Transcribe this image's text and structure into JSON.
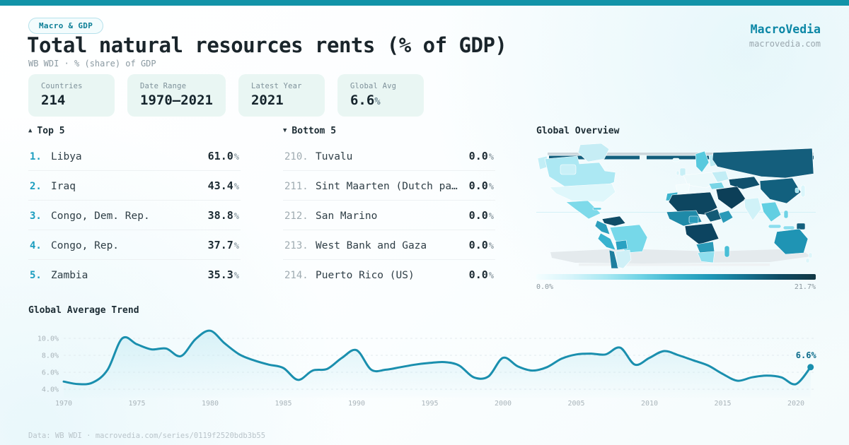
{
  "brand": {
    "name": "MacroVedia",
    "domain": "macrovedia.com"
  },
  "header": {
    "badge": "Macro & GDP",
    "title": "Total natural resources rents (% of GDP)",
    "subtitle": "WB WDI · % (share) of GDP"
  },
  "stats": [
    {
      "label": "Countries",
      "value": "214",
      "unit": ""
    },
    {
      "label": "Date Range",
      "value": "1970—2021",
      "unit": ""
    },
    {
      "label": "Latest Year",
      "value": "2021",
      "unit": ""
    },
    {
      "label": "Global Avg",
      "value": "6.6",
      "unit": "%"
    }
  ],
  "top5": {
    "arrow": "▲",
    "title": "Top 5",
    "rows": [
      {
        "rank": "1.",
        "name": "Libya",
        "value": "61.0",
        "unit": "%"
      },
      {
        "rank": "2.",
        "name": "Iraq",
        "value": "43.4",
        "unit": "%"
      },
      {
        "rank": "3.",
        "name": "Congo, Dem. Rep.",
        "value": "38.8",
        "unit": "%"
      },
      {
        "rank": "4.",
        "name": "Congo, Rep.",
        "value": "37.7",
        "unit": "%"
      },
      {
        "rank": "5.",
        "name": "Zambia",
        "value": "35.3",
        "unit": "%"
      }
    ]
  },
  "bottom5": {
    "arrow": "▼",
    "title": "Bottom 5",
    "rows": [
      {
        "rank": "210.",
        "name": "Tuvalu",
        "value": "0.0",
        "unit": "%"
      },
      {
        "rank": "211.",
        "name": "Sint Maarten (Dutch pa…",
        "value": "0.0",
        "unit": "%"
      },
      {
        "rank": "212.",
        "name": "San Marino",
        "value": "0.0",
        "unit": "%"
      },
      {
        "rank": "213.",
        "name": "West Bank and Gaza",
        "value": "0.0",
        "unit": "%"
      },
      {
        "rank": "214.",
        "name": "Puerto Rico (US)",
        "value": "0.0",
        "unit": "%"
      }
    ]
  },
  "map": {
    "title": "Global Overview",
    "scale_min_label": "0.0%",
    "scale_max_label": "21.7%",
    "scale_colors": [
      "#f4feff",
      "#d6f4fa",
      "#a8e8f2",
      "#6fd3e5",
      "#3cb4ce",
      "#1e97b6",
      "#15718f",
      "#0e4a62",
      "#123744"
    ]
  },
  "trend": {
    "title": "Global Average Trend"
  },
  "footer": {
    "text": "Data: WB WDI · macrovedia.com/series/0119f2520bdb3b55"
  },
  "chart_data": [
    {
      "type": "area",
      "title": "Global Average Trend",
      "ylabel": "% of GDP",
      "x": [
        1970,
        1971,
        1972,
        1973,
        1974,
        1975,
        1976,
        1977,
        1978,
        1979,
        1980,
        1981,
        1982,
        1983,
        1984,
        1985,
        1986,
        1987,
        1988,
        1989,
        1990,
        1991,
        1992,
        1993,
        1994,
        1995,
        1996,
        1997,
        1998,
        1999,
        2000,
        2001,
        2002,
        2003,
        2004,
        2005,
        2006,
        2007,
        2008,
        2009,
        2010,
        2011,
        2012,
        2013,
        2014,
        2015,
        2016,
        2017,
        2018,
        2019,
        2020,
        2021
      ],
      "values": [
        4.9,
        4.6,
        4.8,
        6.3,
        10.0,
        9.3,
        8.7,
        8.8,
        7.9,
        9.9,
        10.9,
        9.4,
        8.1,
        7.4,
        6.9,
        6.5,
        5.1,
        6.2,
        6.4,
        7.7,
        8.6,
        6.3,
        6.3,
        6.6,
        6.9,
        7.1,
        7.2,
        6.8,
        5.4,
        5.5,
        7.7,
        6.7,
        6.2,
        6.6,
        7.6,
        8.1,
        8.2,
        8.1,
        8.9,
        6.9,
        7.7,
        8.5,
        8.0,
        7.4,
        6.8,
        5.8,
        5.0,
        5.4,
        5.6,
        5.4,
        4.6,
        6.6
      ],
      "xticks": [
        1970,
        1975,
        1980,
        1985,
        1990,
        1995,
        2000,
        2005,
        2010,
        2015,
        2020
      ],
      "yticks": [
        4,
        6,
        8,
        10
      ],
      "ylim": [
        3.5,
        11.5
      ],
      "grid": "horizontal-dashed",
      "legend": "none",
      "line_color": "#1a8fae",
      "area_color": "#bfe9f2",
      "end_label": "6.6%",
      "end_label_color": "#0e6d8c"
    },
    {
      "type": "heatmap",
      "title": "Global Overview",
      "note": "world choropleth of latest-year values",
      "scale": {
        "min": 0.0,
        "max": 21.7,
        "unit": "%"
      }
    }
  ]
}
